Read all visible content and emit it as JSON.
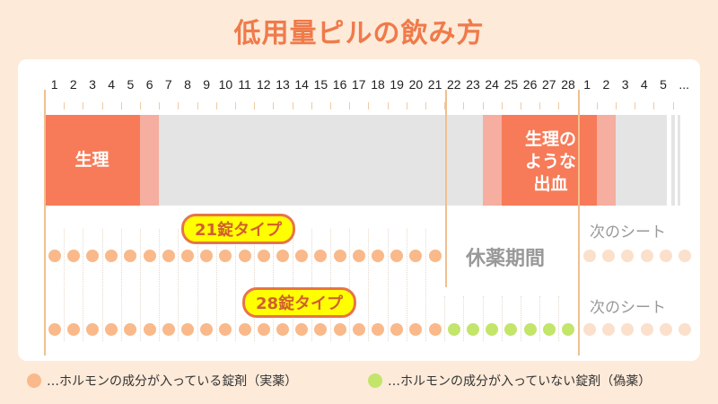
{
  "title": "低用量ピルの飲み方",
  "days": [
    "1",
    "2",
    "3",
    "4",
    "5",
    "6",
    "7",
    "8",
    "9",
    "10",
    "11",
    "12",
    "13",
    "14",
    "15",
    "16",
    "17",
    "18",
    "19",
    "20",
    "21",
    "22",
    "23",
    "24",
    "25",
    "26",
    "27",
    "28",
    "1",
    "2",
    "3",
    "4",
    "5",
    "..."
  ],
  "bands": {
    "period": "生理",
    "withdrawal_bleeding": "生理の\nような\n出血"
  },
  "rows": [
    {
      "label": "21錠タイプ",
      "active_count": 21,
      "placebo_count": 0,
      "break_label": "休薬期間",
      "next_sheet": "次のシート"
    },
    {
      "label": "28錠タイプ",
      "active_count": 21,
      "placebo_count": 7,
      "next_sheet": "次のシート"
    }
  ],
  "legend": [
    {
      "text": "…ホルモンの成分が入っている錠剤（実薬）",
      "color": "#f9b98a"
    },
    {
      "text": "…ホルモンの成分が入っていない錠剤（偽薬）",
      "color": "#c3e56a"
    }
  ],
  "colors": {
    "title": "#f07a4a",
    "period": "#f77b58",
    "light_period": "#f5aea0",
    "no_bleed": "#e4e4e4",
    "active": "#f9b98a",
    "placebo": "#c3e56a",
    "next": "#fbe0cc"
  }
}
